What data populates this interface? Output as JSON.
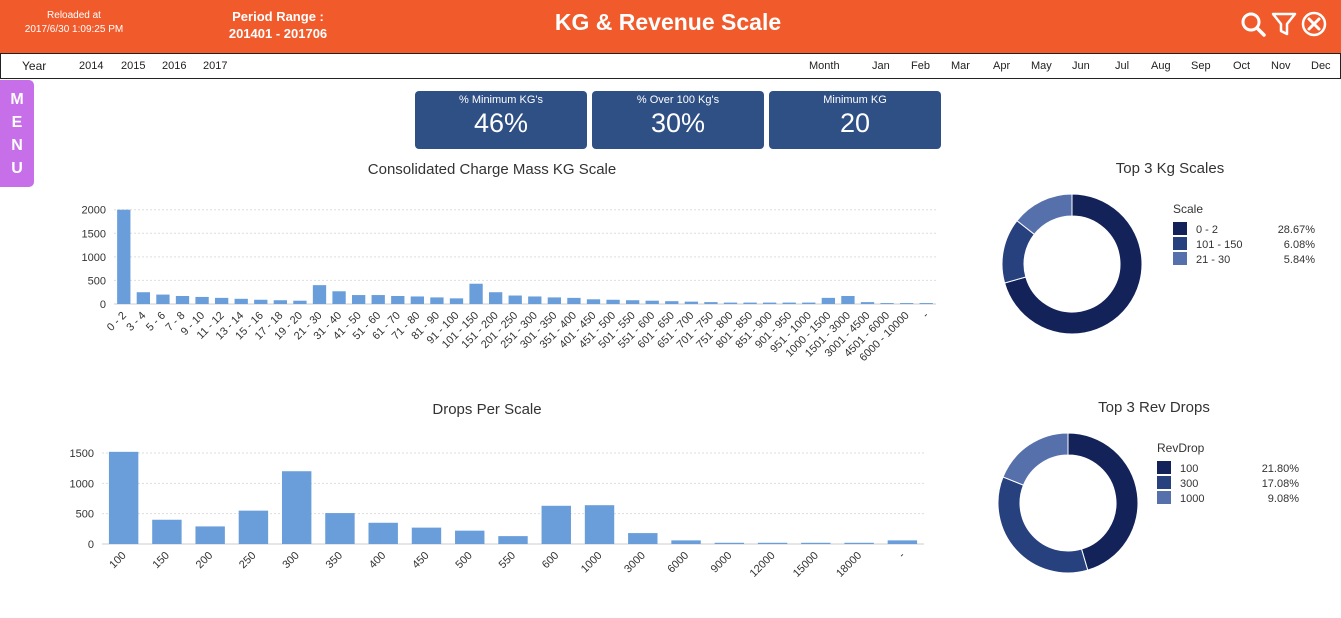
{
  "header": {
    "reload_label": "Reloaded at",
    "reload_time": "2017/6/30 1:09:25 PM",
    "period_label": "Period Range :",
    "period_value": "201401 - 201706",
    "title": "KG & Revenue Scale",
    "icons": [
      "search-icon",
      "filter-icon",
      "close-circle-icon"
    ],
    "color": "#f15a2b"
  },
  "filters": {
    "year_label": "Year",
    "years": [
      "2014",
      "2015",
      "2016",
      "2017"
    ],
    "month_label": "Month",
    "months": [
      "Jan",
      "Feb",
      "Mar",
      "Apr",
      "May",
      "Jun",
      "Jul",
      "Aug",
      "Sep",
      "Oct",
      "Nov",
      "Dec"
    ]
  },
  "menu": {
    "letters": [
      "M",
      "E",
      "N",
      "U"
    ],
    "color": "#c66fe9"
  },
  "kpis": [
    {
      "label": "% Minimum KG's",
      "value": "46%"
    },
    {
      "label": "% Over 100 Kg's",
      "value": "30%"
    },
    {
      "label": "Minimum KG",
      "value": "20"
    }
  ],
  "chart_data": [
    {
      "type": "bar",
      "title": "Consolidated Charge Mass KG Scale",
      "categories": [
        "0 - 2",
        "3 - 4",
        "5 - 6",
        "7 - 8",
        "9 - 10",
        "11 - 12",
        "13 - 14",
        "15 - 16",
        "17 - 18",
        "19 - 20",
        "21 - 30",
        "31 - 40",
        "41 - 50",
        "51 - 60",
        "61 - 70",
        "71 - 80",
        "81 - 90",
        "91 - 100",
        "101 - 150",
        "151 - 200",
        "201 - 250",
        "251 - 300",
        "301 - 350",
        "351 - 400",
        "401 - 450",
        "451 - 500",
        "501 - 550",
        "551 - 600",
        "601 - 650",
        "651 - 700",
        "701 - 750",
        "751 - 800",
        "801 - 850",
        "851 - 900",
        "901 - 950",
        "951 - 1000",
        "1000 - 1500",
        "1501 - 3000",
        "3001 - 4500",
        "4501 - 6000",
        "6000 - 10000",
        "-"
      ],
      "values": [
        2000,
        250,
        200,
        170,
        150,
        130,
        110,
        90,
        80,
        70,
        400,
        270,
        190,
        190,
        170,
        160,
        140,
        120,
        430,
        250,
        180,
        160,
        140,
        130,
        100,
        90,
        80,
        70,
        60,
        50,
        40,
        30,
        30,
        30,
        30,
        30,
        130,
        170,
        40,
        20,
        20,
        20
      ],
      "yticks": [
        0,
        500,
        1000,
        1500,
        2000
      ],
      "ylim": [
        0,
        2100
      ],
      "color": "#6a9edb",
      "grid": true
    },
    {
      "type": "bar",
      "title": "Drops Per Scale",
      "categories": [
        "100",
        "150",
        "200",
        "250",
        "300",
        "350",
        "400",
        "450",
        "500",
        "550",
        "600",
        "1000",
        "3000",
        "6000",
        "9000",
        "12000",
        "15000",
        "18000",
        "-"
      ],
      "values": [
        1520,
        400,
        290,
        550,
        1200,
        510,
        350,
        270,
        220,
        130,
        630,
        640,
        180,
        60,
        20,
        20,
        20,
        20,
        60
      ],
      "yticks": [
        0,
        500,
        1000,
        1500
      ],
      "ylim": [
        0,
        1550
      ],
      "color": "#6a9edb",
      "grid": true
    },
    {
      "type": "pie",
      "title": "Top 3 Kg Scales",
      "legend_title": "Scale",
      "labels": [
        "0 - 2",
        "101  - 150",
        "21 - 30"
      ],
      "pct_labels": [
        "28.67%",
        "6.08%",
        "5.84%"
      ],
      "values": [
        28.67,
        6.08,
        5.84
      ],
      "colors": [
        "#13235a",
        "#27407e",
        "#5670ab"
      ],
      "legend": "right"
    },
    {
      "type": "pie",
      "title": "Top 3 Rev Drops",
      "legend_title": "RevDrop",
      "labels": [
        "100",
        "300",
        "1000"
      ],
      "pct_labels": [
        "21.80%",
        "17.08%",
        "9.08%"
      ],
      "values": [
        21.8,
        17.08,
        9.08
      ],
      "colors": [
        "#13235a",
        "#27407e",
        "#5670ab"
      ],
      "legend": "right"
    }
  ]
}
